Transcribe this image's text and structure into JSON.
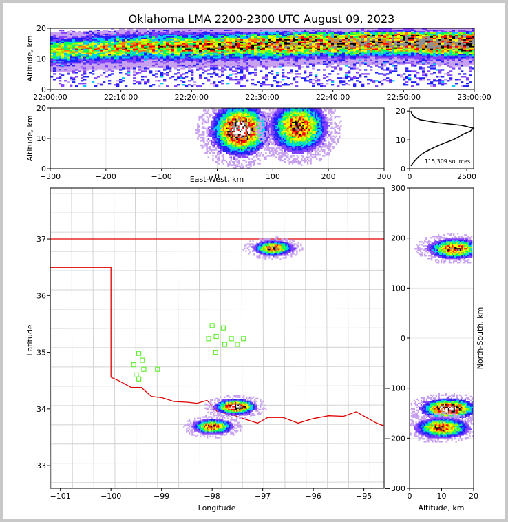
{
  "title": "Oklahoma LMA 2200-2300 UTC August 09, 2023",
  "panels": {
    "time_height": {
      "ylabel": "Altitude, km",
      "xticks": [
        "22:00:00",
        "22:10:00",
        "22:20:00",
        "22:30:00",
        "22:40:00",
        "22:50:00",
        "23:00:00"
      ],
      "yticks": [
        "0",
        "10",
        "20"
      ]
    },
    "ew_height": {
      "ylabel": "Altitude, km",
      "xlabel": "East-West, km",
      "xticks": [
        "−300",
        "−200",
        "−100",
        "0",
        "100",
        "200",
        "300"
      ],
      "yticks": [
        "0",
        "10",
        "20"
      ]
    },
    "alt_hist": {
      "xticks": [
        "0",
        "2500"
      ],
      "yticks": [
        "0",
        "10",
        "20"
      ],
      "annotation": "115,309 sources"
    },
    "map": {
      "xlabel": "Longitude",
      "ylabel": "Latitude",
      "xticks": [
        "−101",
        "−100",
        "−99",
        "−98",
        "−97",
        "−96",
        "−95"
      ],
      "yticks": [
        "33",
        "34",
        "35",
        "36",
        "37"
      ]
    },
    "ns_alt": {
      "xlabel": "Altitude, km",
      "ylabel": "North-South, km",
      "xticks": [
        "0",
        "10",
        "20"
      ],
      "yticks": [
        "−300",
        "−200",
        "−100",
        "0",
        "100",
        "200",
        "300"
      ]
    }
  },
  "chart_data": {
    "type": "heatmap",
    "title": "Oklahoma LMA 2200-2300 UTC August 09, 2023",
    "colormap": [
      "#ffffff",
      "#c8a0f0",
      "#8040ff",
      "#2020ff",
      "#00c8ff",
      "#00ff60",
      "#a0ff00",
      "#ffff00",
      "#ff8000",
      "#ff0000",
      "#000000",
      "#909090",
      "#ffffff"
    ],
    "total_sources": 115309,
    "time_height": {
      "xlim": [
        "22:00:00",
        "23:00:00"
      ],
      "ylim": [
        0,
        20
      ],
      "ridge_altitude_km": [
        12.5,
        13,
        13.5,
        14,
        14,
        14,
        14.5,
        14.5,
        15,
        15,
        15.5,
        15.5,
        15,
        15
      ]
    },
    "ew_height": {
      "xlim": [
        -300,
        300
      ],
      "ylim": [
        0,
        20
      ],
      "cells": [
        {
          "x_center_km": 40,
          "alt_center_km": 13,
          "peak": "high"
        },
        {
          "x_center_km": 145,
          "alt_center_km": 14,
          "peak": "medium"
        }
      ]
    },
    "alt_hist": {
      "xlim": [
        0,
        2800
      ],
      "ylim": [
        0,
        21
      ],
      "altitudes_km": [
        1,
        2,
        3,
        4,
        5,
        6,
        7,
        8,
        9,
        10,
        11,
        12,
        13,
        14,
        15,
        16,
        17,
        18,
        19,
        20
      ],
      "counts": [
        60,
        150,
        260,
        380,
        520,
        720,
        980,
        1250,
        1550,
        1900,
        2150,
        2350,
        2650,
        2800,
        2300,
        1200,
        450,
        200,
        100,
        60
      ]
    },
    "map": {
      "xlim": [
        -101.2,
        -94.6
      ],
      "ylim": [
        32.6,
        37.9
      ],
      "cells": [
        {
          "lon": -96.8,
          "lat": 36.85,
          "peak": "medium"
        },
        {
          "lon": -97.55,
          "lat": 34.05,
          "peak": "high"
        },
        {
          "lon": -98.0,
          "lat": 33.7,
          "peak": "medium"
        }
      ],
      "stations": [
        {
          "lon": -99.55,
          "lat": 34.78
        },
        {
          "lon": -99.45,
          "lat": 34.98
        },
        {
          "lon": -99.38,
          "lat": 34.86
        },
        {
          "lon": -99.35,
          "lat": 34.7
        },
        {
          "lon": -99.5,
          "lat": 34.6
        },
        {
          "lon": -99.45,
          "lat": 34.53
        },
        {
          "lon": -99.08,
          "lat": 34.7
        },
        {
          "lon": -98.0,
          "lat": 35.47
        },
        {
          "lon": -97.78,
          "lat": 35.43
        },
        {
          "lon": -97.92,
          "lat": 35.28
        },
        {
          "lon": -98.07,
          "lat": 35.24
        },
        {
          "lon": -97.62,
          "lat": 35.24
        },
        {
          "lon": -97.38,
          "lat": 35.24
        },
        {
          "lon": -97.75,
          "lat": 35.14
        },
        {
          "lon": -97.5,
          "lat": 35.14
        },
        {
          "lon": -97.93,
          "lat": 35.0
        }
      ]
    },
    "ns_alt": {
      "xlim": [
        0,
        20
      ],
      "ylim": [
        -300,
        300
      ],
      "cells": [
        {
          "ns_center_km": 180,
          "alt_center_km": 14,
          "peak": "medium"
        },
        {
          "ns_center_km": -140,
          "alt_center_km": 12,
          "peak": "high"
        },
        {
          "ns_center_km": -178,
          "alt_center_km": 10,
          "peak": "medium"
        }
      ]
    }
  }
}
